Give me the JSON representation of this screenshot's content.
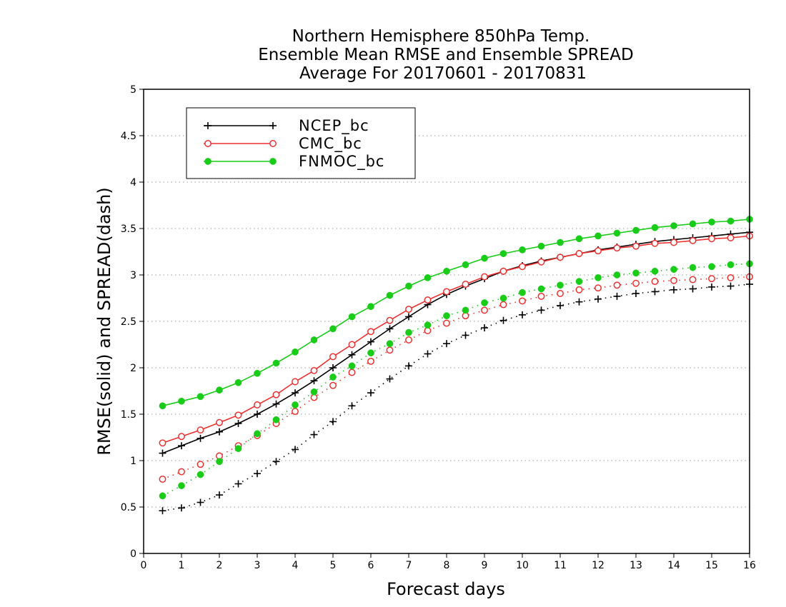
{
  "chart_data": {
    "type": "line",
    "title": [
      "Northern Hemisphere 850hPa Temp.",
      "Ensemble Mean RMSE and Ensemble SPREAD",
      "Average For 20170601 - 20170831"
    ],
    "xlabel": "Forecast days",
    "ylabel": "RMSE(solid) and SPREAD(dash)",
    "xlim": [
      0,
      16
    ],
    "ylim": [
      0,
      5
    ],
    "xticks": [
      "0",
      "1",
      "2",
      "3",
      "4",
      "5",
      "6",
      "7",
      "8",
      "9",
      "10",
      "11",
      "12",
      "13",
      "14",
      "15",
      "16"
    ],
    "yticks": [
      "0",
      "0.5",
      "1",
      "1.5",
      "2",
      "2.5",
      "3",
      "3.5",
      "4",
      "4.5",
      "5"
    ],
    "grid": "horizontal-dotted",
    "legend_position": "top-left",
    "x": [
      0.5,
      1,
      1.5,
      2,
      2.5,
      3,
      3.5,
      4,
      4.5,
      5,
      5.5,
      6,
      6.5,
      7,
      7.5,
      8,
      8.5,
      9,
      9.5,
      10,
      10.5,
      11,
      11.5,
      12,
      12.5,
      13,
      13.5,
      14,
      14.5,
      15,
      15.5,
      16
    ],
    "series": [
      {
        "name": "NCEP_bc",
        "color": "#000000",
        "marker": "plus",
        "rmse": [
          1.08,
          1.16,
          1.24,
          1.31,
          1.4,
          1.5,
          1.61,
          1.73,
          1.86,
          2.0,
          2.14,
          2.28,
          2.42,
          2.55,
          2.68,
          2.79,
          2.88,
          2.96,
          3.04,
          3.1,
          3.15,
          3.19,
          3.23,
          3.27,
          3.3,
          3.33,
          3.36,
          3.38,
          3.4,
          3.42,
          3.44,
          3.46
        ],
        "spread": [
          0.46,
          0.49,
          0.55,
          0.63,
          0.75,
          0.86,
          0.99,
          1.12,
          1.28,
          1.42,
          1.59,
          1.73,
          1.88,
          2.02,
          2.15,
          2.26,
          2.35,
          2.43,
          2.51,
          2.57,
          2.62,
          2.67,
          2.71,
          2.74,
          2.77,
          2.8,
          2.82,
          2.84,
          2.85,
          2.87,
          2.88,
          2.9
        ]
      },
      {
        "name": "CMC_bc",
        "color": "#ee3030",
        "marker": "open-circle",
        "rmse": [
          1.19,
          1.26,
          1.33,
          1.41,
          1.49,
          1.6,
          1.71,
          1.85,
          1.97,
          2.12,
          2.25,
          2.39,
          2.51,
          2.63,
          2.73,
          2.82,
          2.9,
          2.98,
          3.04,
          3.09,
          3.14,
          3.19,
          3.23,
          3.26,
          3.29,
          3.31,
          3.34,
          3.35,
          3.37,
          3.39,
          3.4,
          3.42
        ],
        "spread": [
          0.8,
          0.88,
          0.96,
          1.05,
          1.16,
          1.27,
          1.4,
          1.53,
          1.68,
          1.81,
          1.95,
          2.07,
          2.19,
          2.3,
          2.4,
          2.48,
          2.56,
          2.62,
          2.68,
          2.72,
          2.77,
          2.8,
          2.84,
          2.86,
          2.89,
          2.91,
          2.93,
          2.94,
          2.95,
          2.96,
          2.97,
          2.98
        ]
      },
      {
        "name": "FNMOC_bc",
        "color": "#18cc18",
        "marker": "filled-circle",
        "rmse": [
          1.59,
          1.64,
          1.69,
          1.76,
          1.84,
          1.94,
          2.05,
          2.17,
          2.3,
          2.42,
          2.55,
          2.66,
          2.78,
          2.88,
          2.97,
          3.04,
          3.11,
          3.18,
          3.23,
          3.27,
          3.31,
          3.35,
          3.39,
          3.42,
          3.45,
          3.48,
          3.51,
          3.53,
          3.55,
          3.57,
          3.58,
          3.6
        ],
        "spread": [
          0.62,
          0.73,
          0.85,
          0.99,
          1.13,
          1.29,
          1.44,
          1.6,
          1.74,
          1.9,
          2.02,
          2.16,
          2.26,
          2.38,
          2.46,
          2.56,
          2.62,
          2.7,
          2.75,
          2.81,
          2.85,
          2.89,
          2.93,
          2.97,
          3.0,
          3.02,
          3.04,
          3.06,
          3.08,
          3.09,
          3.11,
          3.12
        ]
      }
    ]
  }
}
